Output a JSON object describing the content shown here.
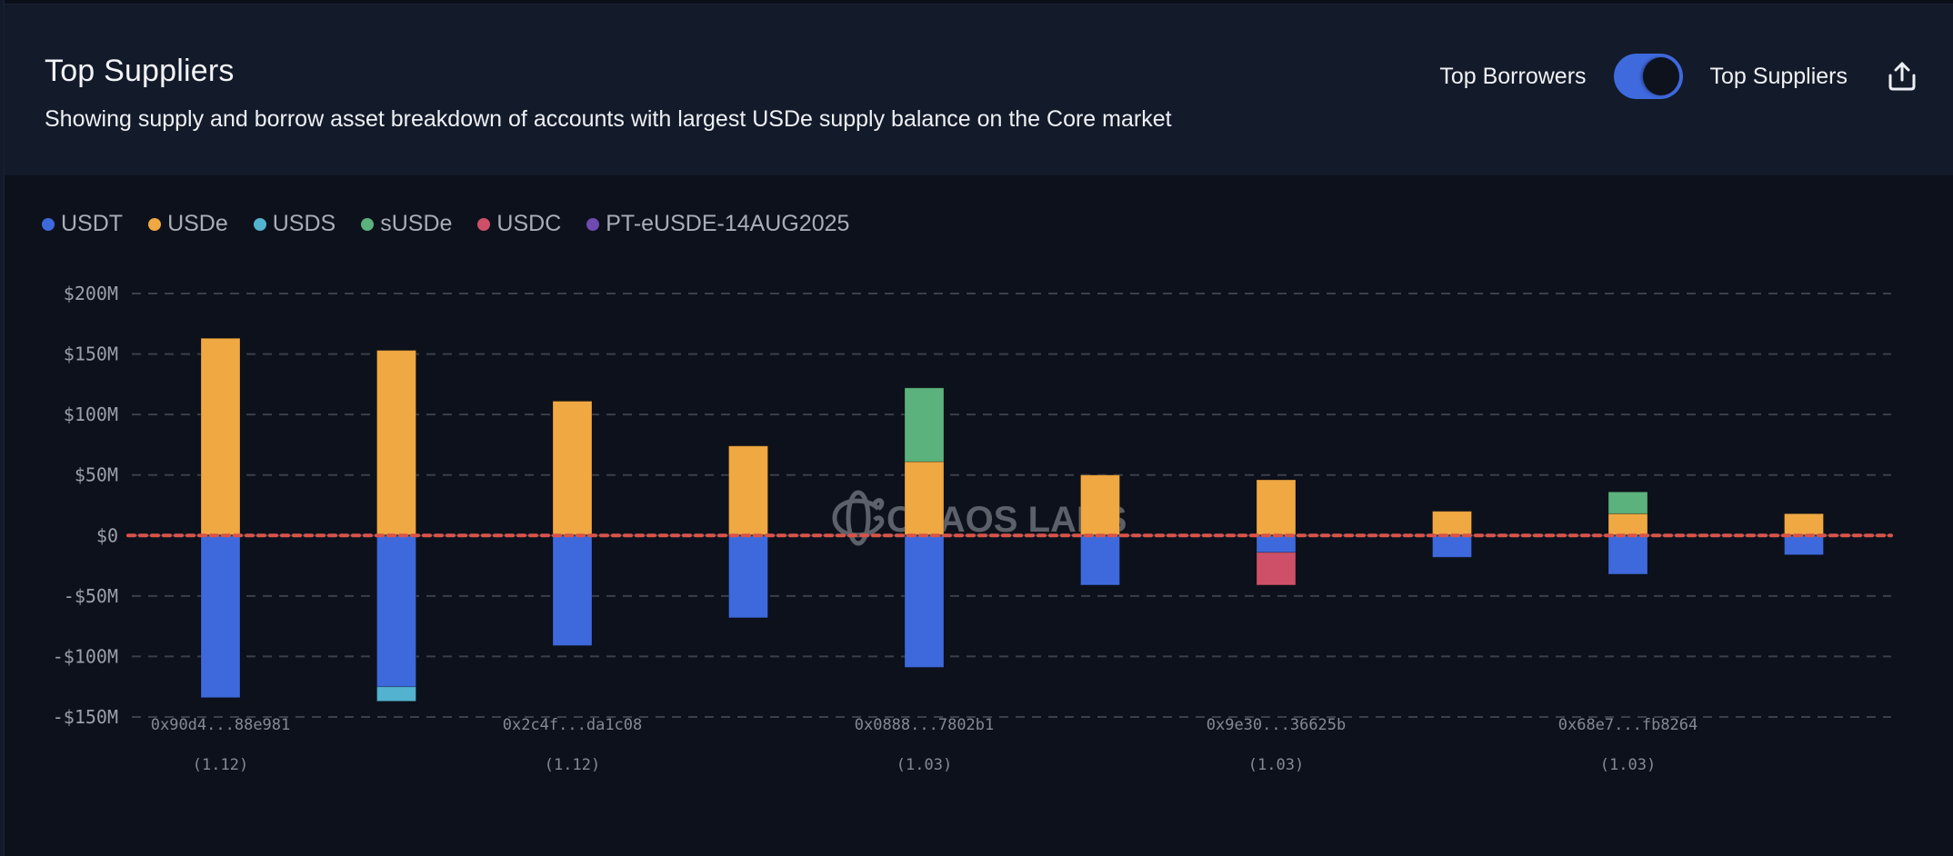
{
  "header": {
    "title": "Top Suppliers",
    "subtitle": "Showing supply and borrow asset breakdown of accounts with largest USDe supply balance on the Core market",
    "toggle_left_label": "Top Borrowers",
    "toggle_right_label": "Top Suppliers",
    "toggle_state": "Top Suppliers",
    "export_icon": "share-export-icon"
  },
  "watermark": "CHAOS LABS",
  "colors": {
    "USDT": "#3e69dc",
    "USDe": "#f0a842",
    "USDS": "#52b2cf",
    "sUSDe": "#5bb27c",
    "USDC": "#cd5068",
    "PT-eUSDE-14AUG2025": "#6f4ab0",
    "zero_line": "#d9534a",
    "grid": "#3a3f4a"
  },
  "chart_data": {
    "type": "bar",
    "stacked": true,
    "title": "Top Suppliers",
    "xlabel": "",
    "ylabel": "",
    "ylim": [
      -150,
      200
    ],
    "y_unit": "$M",
    "yticks": [
      200,
      150,
      100,
      50,
      0,
      -50,
      -100,
      -150
    ],
    "ytick_labels": [
      "$200M",
      "$150M",
      "$100M",
      "$50M",
      "$0",
      "-$50M",
      "-$100M",
      "-$150M"
    ],
    "grid": true,
    "legend": [
      "USDT",
      "USDe",
      "USDS",
      "sUSDe",
      "USDC",
      "PT-eUSDE-14AUG2025"
    ],
    "legend_position": "top-left",
    "categories": [
      {
        "address": "0x90d4...88e981",
        "health": "(1.12)",
        "label_visible": true
      },
      {
        "address": "",
        "health": "",
        "label_visible": false
      },
      {
        "address": "0x2c4f...da1c08",
        "health": "(1.12)",
        "label_visible": true
      },
      {
        "address": "",
        "health": "",
        "label_visible": false
      },
      {
        "address": "0x0888...7802b1",
        "health": "(1.03)",
        "label_visible": true
      },
      {
        "address": "",
        "health": "",
        "label_visible": false
      },
      {
        "address": "0x9e30...36625b",
        "health": "(1.03)",
        "label_visible": true
      },
      {
        "address": "",
        "health": "",
        "label_visible": false
      },
      {
        "address": "0x68e7...fb8264",
        "health": "(1.03)",
        "label_visible": true
      },
      {
        "address": "",
        "health": "",
        "label_visible": false
      }
    ],
    "series": [
      {
        "name": "USDe",
        "side": "supply",
        "values": [
          163,
          153,
          111,
          74,
          61,
          50,
          46,
          20,
          18,
          18
        ]
      },
      {
        "name": "sUSDe",
        "side": "supply",
        "values": [
          0,
          0,
          0,
          0,
          61,
          0,
          0,
          0,
          18,
          0
        ]
      },
      {
        "name": "USDT",
        "side": "borrow",
        "values": [
          -134,
          -125,
          -91,
          -68,
          -109,
          -41,
          -14,
          -18,
          -32,
          -16
        ]
      },
      {
        "name": "USDS",
        "side": "borrow",
        "values": [
          0,
          -12,
          0,
          0,
          0,
          0,
          0,
          0,
          0,
          0
        ]
      },
      {
        "name": "USDC",
        "side": "borrow",
        "values": [
          0,
          0,
          0,
          0,
          0,
          0,
          -27,
          0,
          0,
          0
        ]
      },
      {
        "name": "PT-eUSDE-14AUG2025",
        "side": "supply",
        "values": [
          0,
          0,
          0,
          0,
          0,
          0,
          0,
          0,
          0,
          0
        ]
      }
    ],
    "reference_line": {
      "value": 0,
      "style": "dotted",
      "color": "#d9534a"
    }
  }
}
